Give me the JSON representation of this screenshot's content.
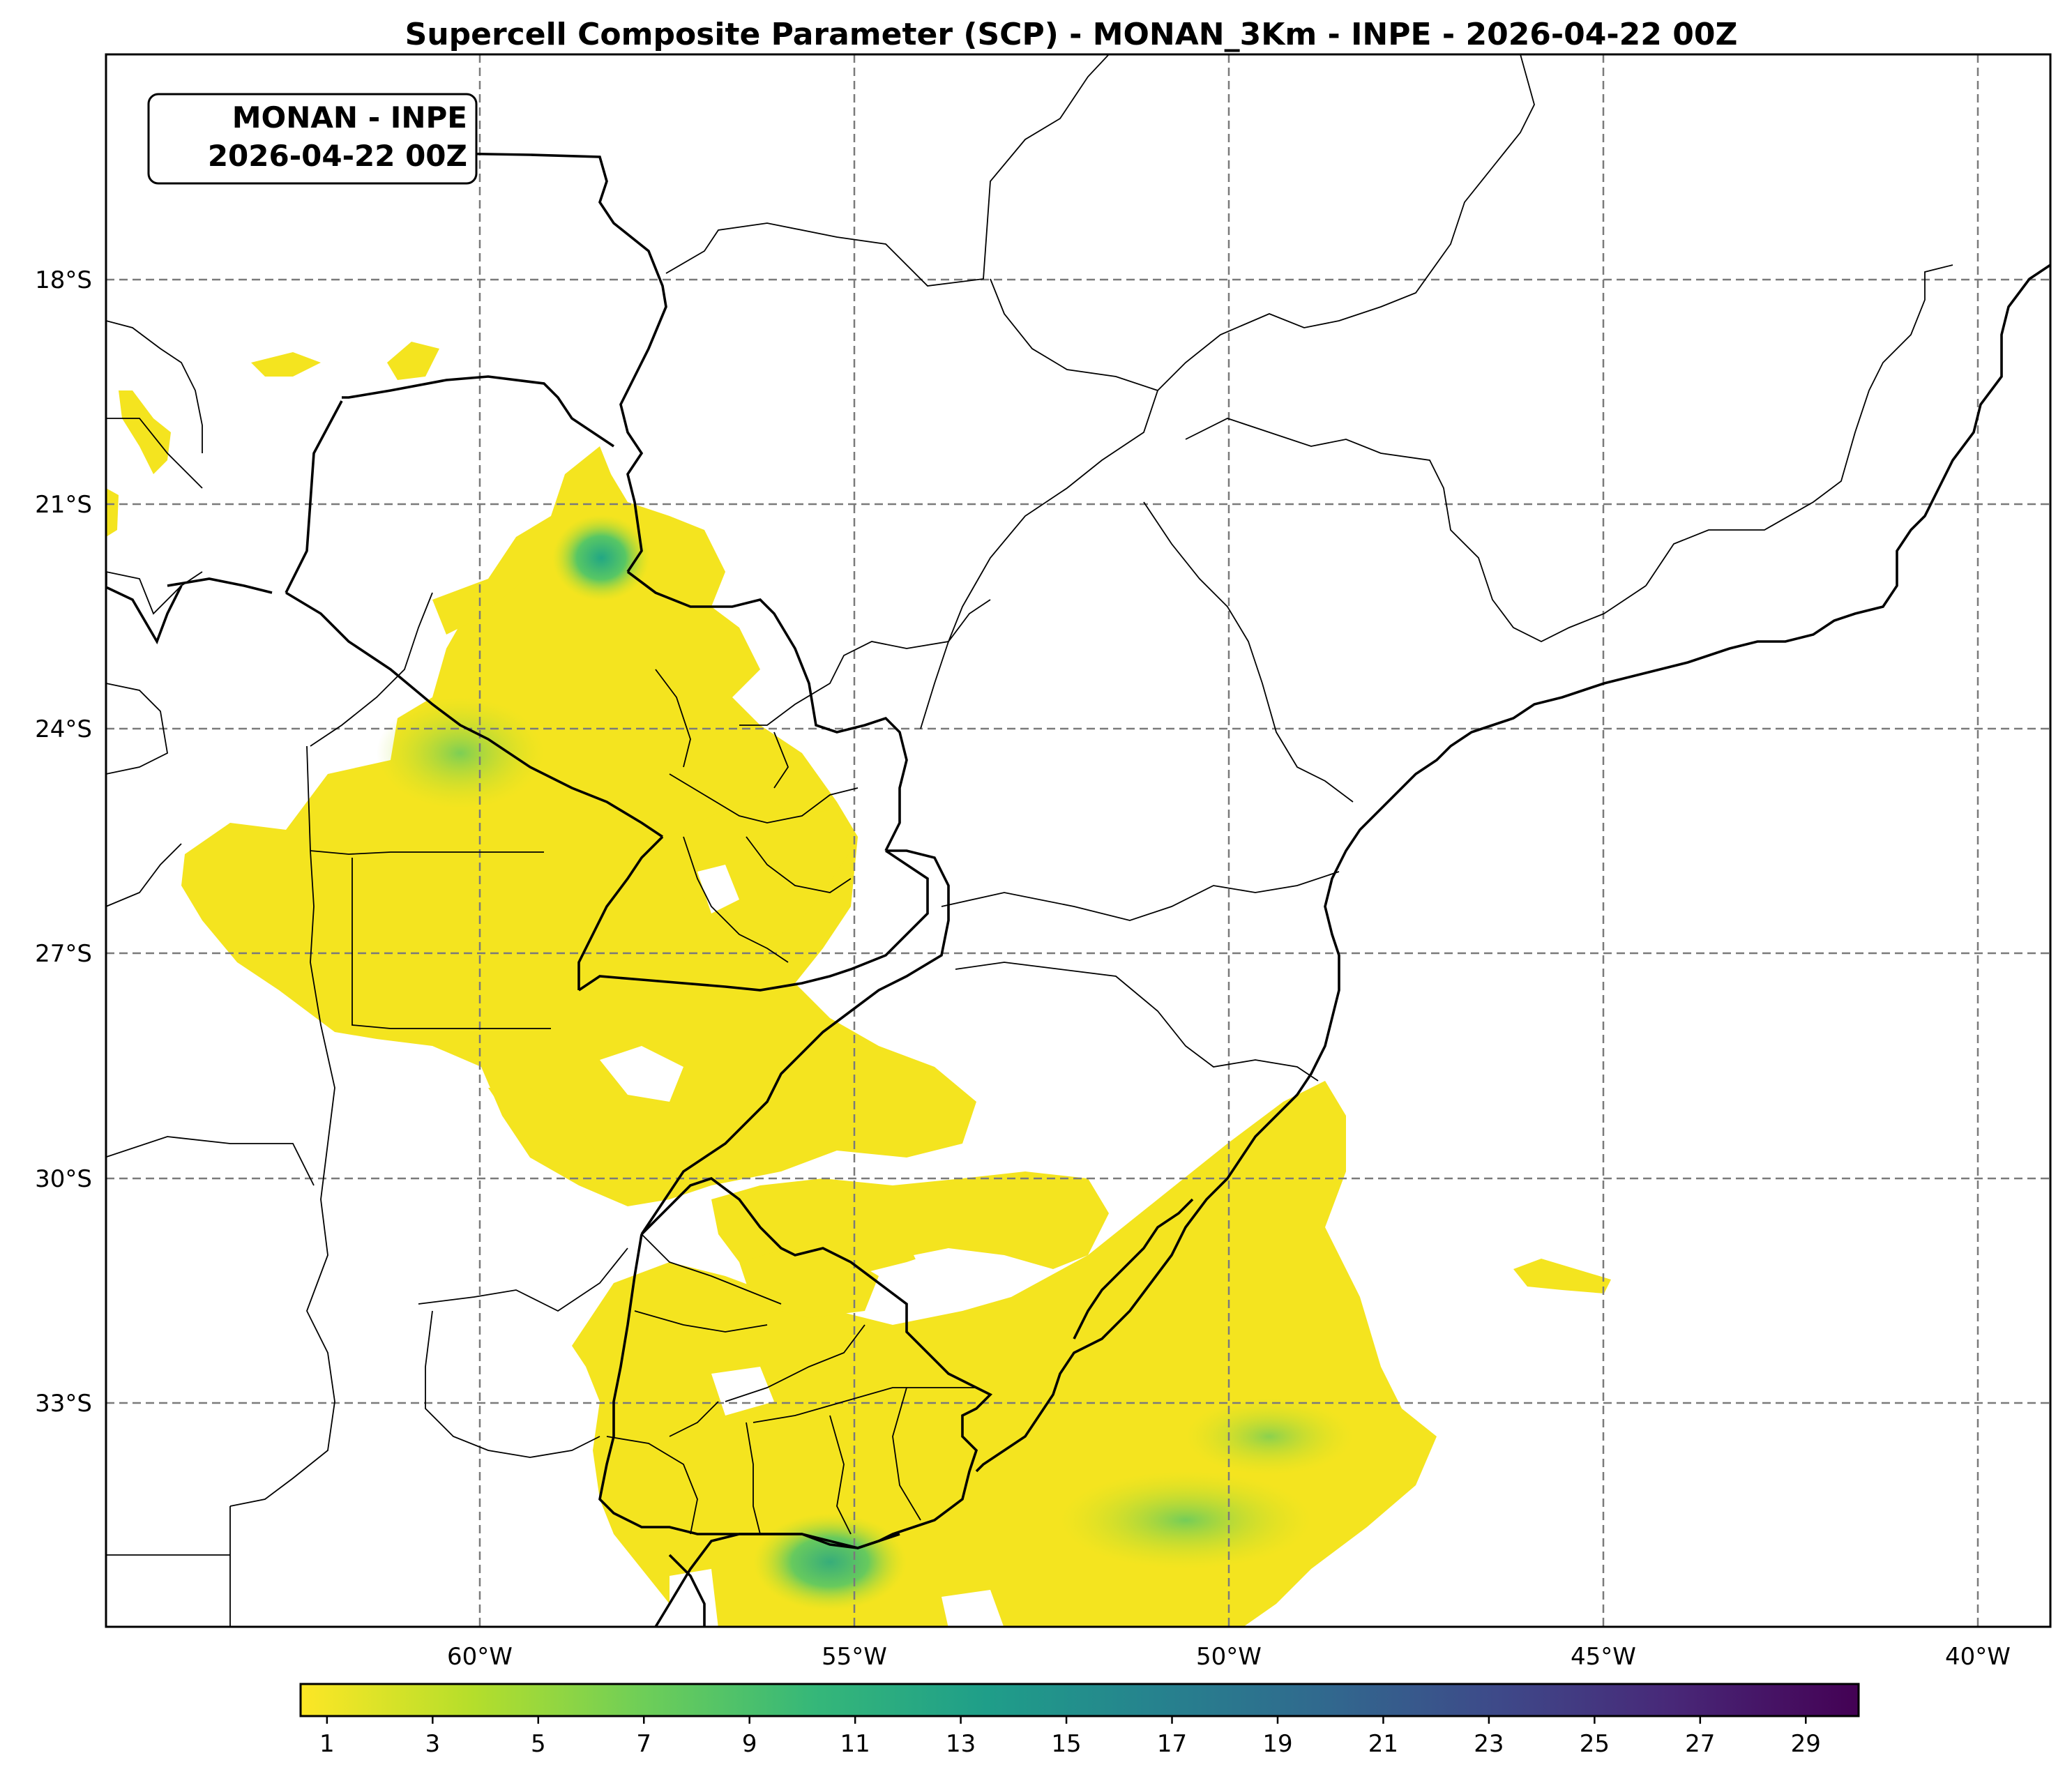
{
  "title": "Supercell Composite Parameter (SCP) - MONAN_3Km - INPE - 2026-04-22 00Z",
  "inset_label": {
    "line1": "MONAN - INPE",
    "line2": "2026-04-22 00Z"
  },
  "axes": {
    "lon_labels": [
      "60°W",
      "55°W",
      "50°W",
      "45°W",
      "40°W"
    ],
    "lat_labels": [
      "18°S",
      "21°S",
      "24°S",
      "27°S",
      "30°S",
      "33°S"
    ]
  },
  "colorbar": {
    "tick_labels": [
      "1",
      "3",
      "5",
      "7",
      "9",
      "11",
      "13",
      "15",
      "17",
      "19",
      "21",
      "23",
      "25",
      "27",
      "29"
    ],
    "colormap": "viridis_r",
    "colors": [
      "#fde725",
      "#b5de2b",
      "#6ece58",
      "#35b779",
      "#1f9e89",
      "#26828e",
      "#31688e",
      "#3e4989",
      "#482878",
      "#440154"
    ]
  },
  "colors": {
    "field_low": "#f4e41f",
    "field_mid": "#c9e025",
    "field_high": "#2aa88a",
    "grid": "#7a7a7a",
    "lines": "#000000"
  }
}
